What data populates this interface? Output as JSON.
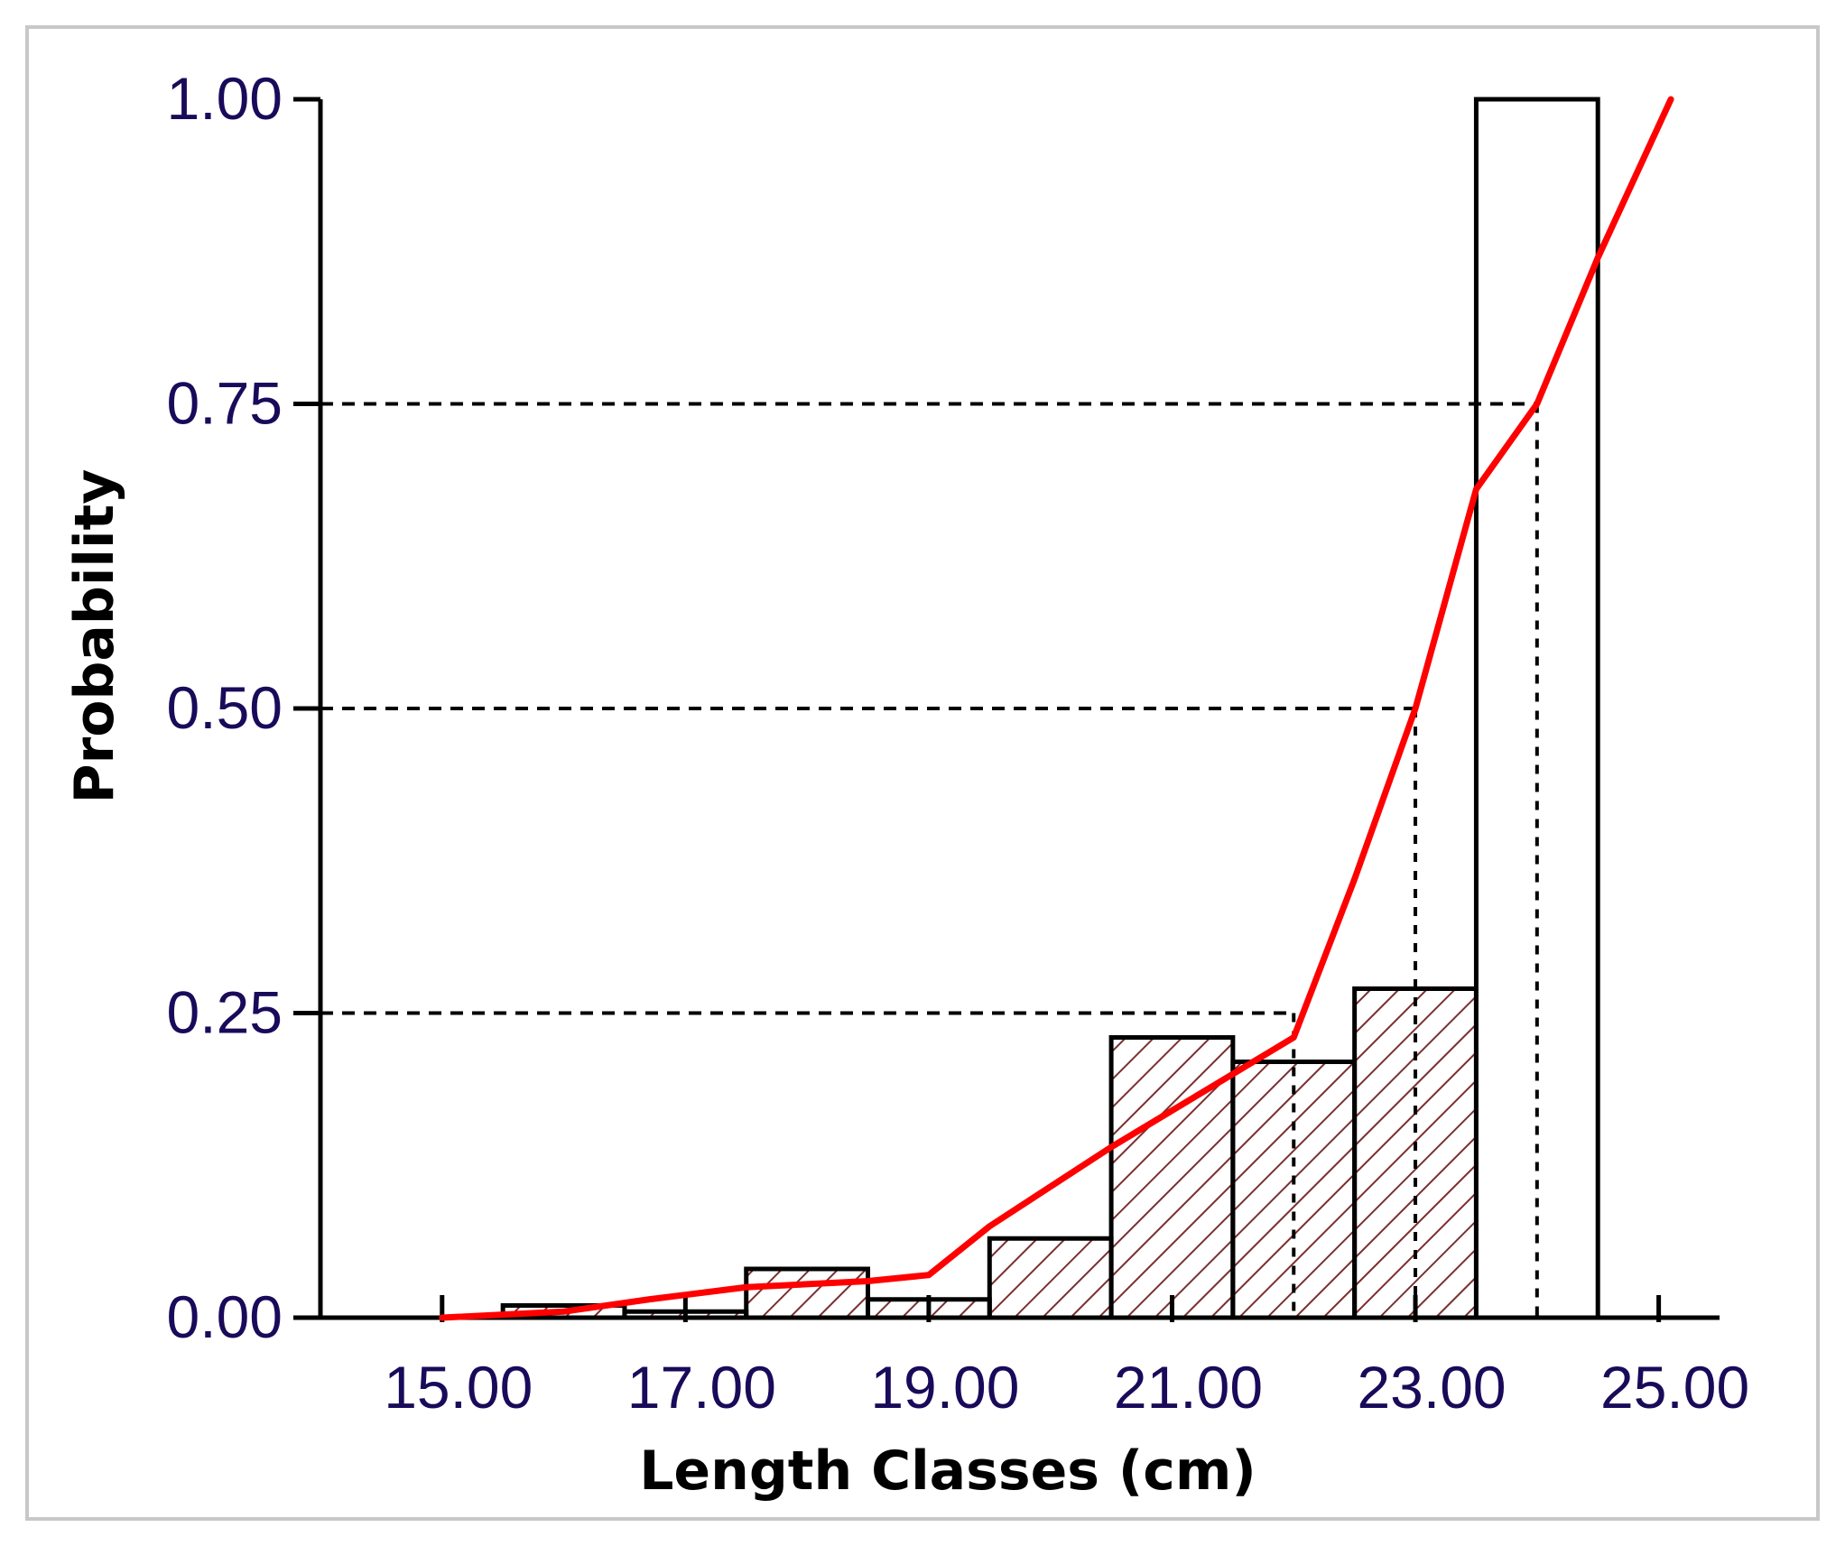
{
  "chart_data": {
    "type": "bar",
    "title": "",
    "xlabel": "Length Classes (cm)",
    "ylabel": "Probability",
    "xlim": [
      14.0,
      25.5
    ],
    "ylim": [
      0,
      1.0
    ],
    "x_ticks": [
      "15.00",
      "17.00",
      "19.00",
      "21.00",
      "23.00",
      "25.00"
    ],
    "y_ticks": [
      "0.00",
      "0.25",
      "0.50",
      "0.75",
      "1.00"
    ],
    "bars": [
      {
        "x0": 15.5,
        "x1": 16.5,
        "value": 0.01,
        "hatched": true
      },
      {
        "x0": 16.5,
        "x1": 17.5,
        "value": 0.005,
        "hatched": true
      },
      {
        "x0": 17.5,
        "x1": 18.5,
        "value": 0.04,
        "hatched": true
      },
      {
        "x0": 18.5,
        "x1": 19.5,
        "value": 0.015,
        "hatched": true
      },
      {
        "x0": 19.5,
        "x1": 20.5,
        "value": 0.065,
        "hatched": true
      },
      {
        "x0": 20.5,
        "x1": 21.5,
        "value": 0.23,
        "hatched": true
      },
      {
        "x0": 21.5,
        "x1": 22.5,
        "value": 0.21,
        "hatched": true
      },
      {
        "x0": 22.5,
        "x1": 23.5,
        "value": 0.27,
        "hatched": true
      },
      {
        "x0": 23.5,
        "x1": 24.5,
        "value": 1.0,
        "hatched": false
      }
    ],
    "series": [
      {
        "type": "line",
        "color": "#ff0000",
        "x": [
          15.0,
          16.0,
          16.7,
          17.5,
          18.5,
          19.0,
          19.5,
          20.5,
          21.5,
          22.0,
          22.5,
          23.0,
          23.5,
          24.0,
          24.5,
          25.1
        ],
        "y": [
          0.0,
          0.005,
          0.015,
          0.025,
          0.03,
          0.035,
          0.075,
          0.14,
          0.2,
          0.23,
          0.36,
          0.5,
          0.68,
          0.75,
          0.87,
          1.0
        ]
      }
    ],
    "reference_lines": [
      {
        "y": 0.25,
        "x": 22.0
      },
      {
        "y": 0.5,
        "x": 23.0
      },
      {
        "y": 0.75,
        "x": 24.0
      }
    ],
    "grid": false,
    "legend": "none",
    "colors": {
      "axis": "#000000",
      "hatch": "#7a3030",
      "curve": "#ff0000",
      "tick_label": "#1a0a5a"
    }
  }
}
